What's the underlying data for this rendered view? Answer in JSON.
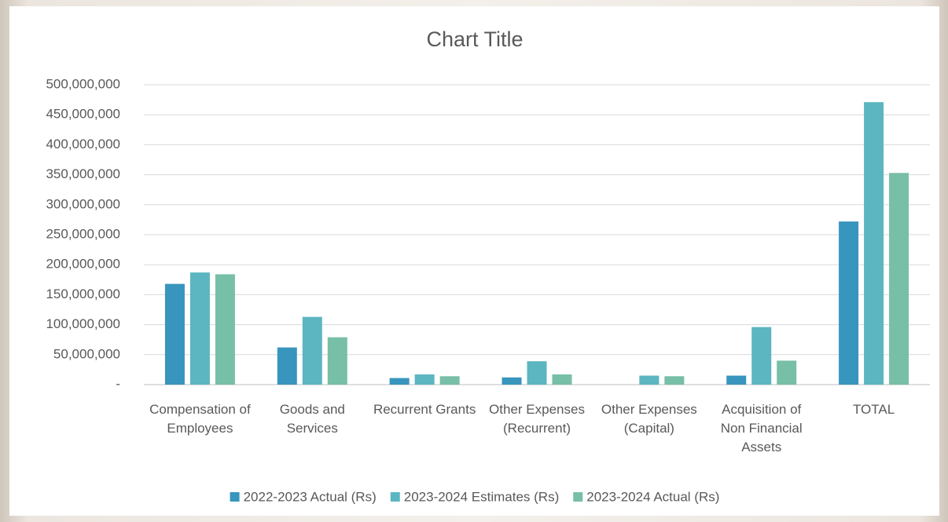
{
  "chart_data": {
    "type": "bar",
    "title": "Chart Title",
    "categories": [
      "Compensation of Employees",
      "Goods and Services",
      "Recurrent Grants",
      "Other Expenses (Recurrent)",
      "Other Expenses (Capital)",
      "Acquisition of Non Financial Assets",
      "TOTAL"
    ],
    "series": [
      {
        "name": "2022-2023 Actual (Rs)",
        "color": "#3895bd",
        "values": [
          168000000,
          62000000,
          11000000,
          12000000,
          null,
          15000000,
          272000000
        ]
      },
      {
        "name": "2023-2024 Estimates (Rs)",
        "color": "#5bb6c1",
        "values": [
          187000000,
          113000000,
          17000000,
          39000000,
          15000000,
          96000000,
          471000000
        ]
      },
      {
        "name": "2023-2024 Actual (Rs)",
        "color": "#77bfa6",
        "values": [
          184000000,
          79000000,
          14000000,
          17000000,
          14000000,
          40000000,
          353000000
        ]
      }
    ],
    "ylim": [
      0,
      500000000
    ],
    "yticks": [
      {
        "value": 0,
        "label": "-"
      },
      {
        "value": 50000000,
        "label": "50,000,000"
      },
      {
        "value": 100000000,
        "label": "100,000,000"
      },
      {
        "value": 150000000,
        "label": "150,000,000"
      },
      {
        "value": 200000000,
        "label": "200,000,000"
      },
      {
        "value": 250000000,
        "label": "250,000,000"
      },
      {
        "value": 300000000,
        "label": "300,000,000"
      },
      {
        "value": 350000000,
        "label": "350,000,000"
      },
      {
        "value": 400000000,
        "label": "400,000,000"
      },
      {
        "value": 450000000,
        "label": "450,000,000"
      },
      {
        "value": 500000000,
        "label": "500,000,000"
      }
    ],
    "grid": true,
    "legend": "bottom"
  }
}
